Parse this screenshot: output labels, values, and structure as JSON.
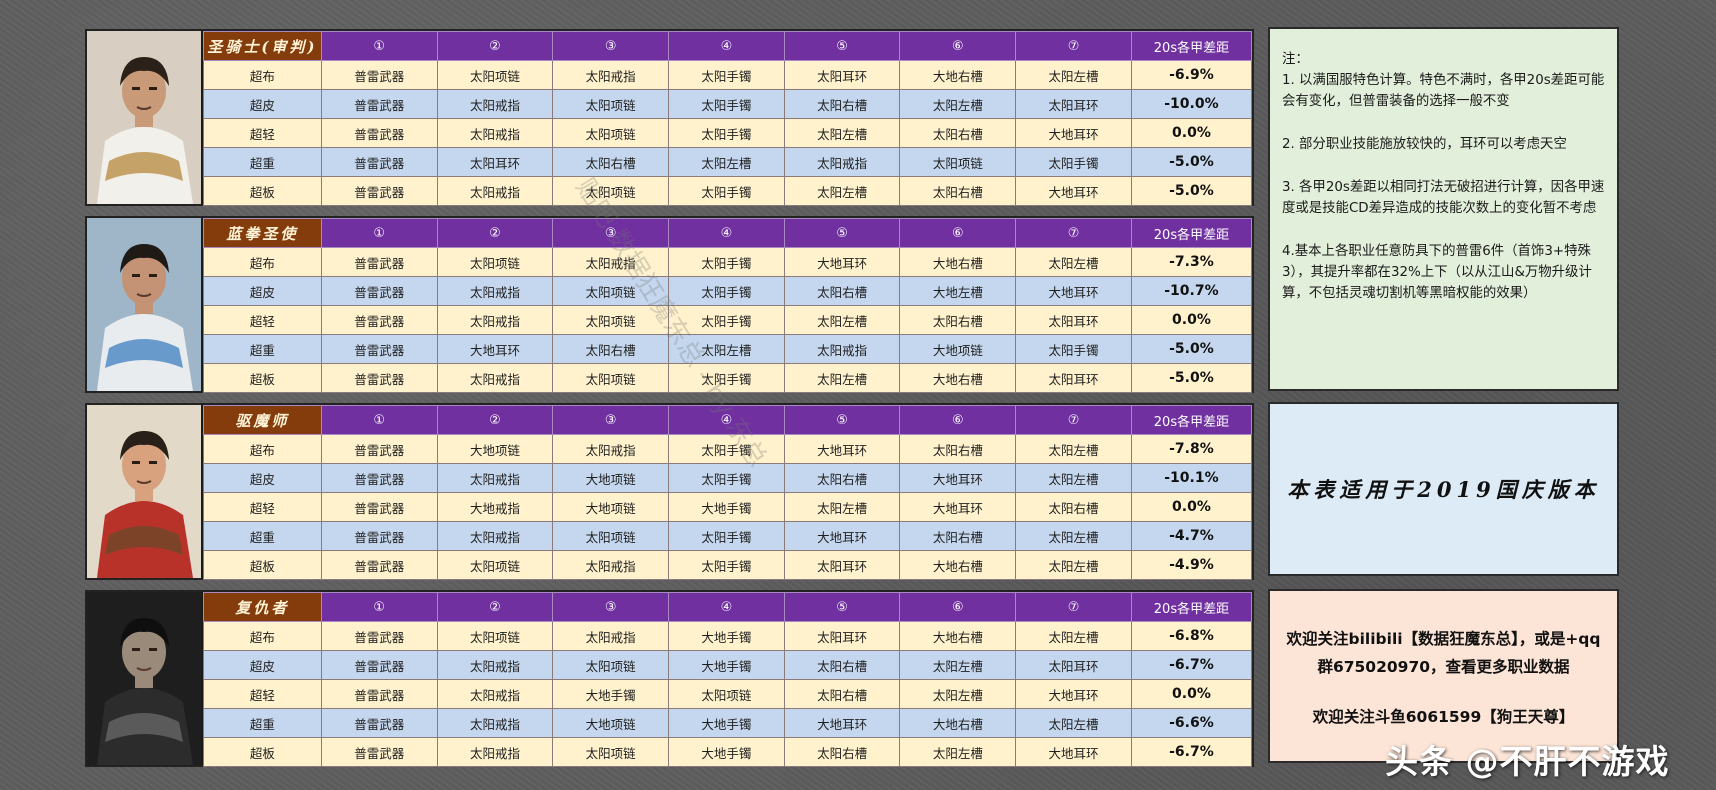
{
  "header_slots": [
    "①",
    "②",
    "③",
    "④",
    "⑤",
    "⑥",
    "⑦",
    "20s各甲差距"
  ],
  "classes": [
    {
      "name": "圣骑士(审判)",
      "palette": {
        "bg": "#d8cfc2",
        "skin": "#c89a78",
        "hair": "#2b2118",
        "cloth": "#f2f0ea",
        "accent": "#b58a3c"
      },
      "rows": [
        {
          "armor": "超布",
          "slots": [
            "普雷武器",
            "太阳项链",
            "太阳戒指",
            "太阳手镯",
            "太阳耳环",
            "大地右槽",
            "太阳左槽"
          ],
          "diff": "-6.9%"
        },
        {
          "armor": "超皮",
          "slots": [
            "普雷武器",
            "太阳戒指",
            "太阳项链",
            "太阳手镯",
            "太阳右槽",
            "太阳左槽",
            "太阳耳环"
          ],
          "diff": "-10.0%"
        },
        {
          "armor": "超轻",
          "slots": [
            "普雷武器",
            "太阳戒指",
            "太阳项链",
            "太阳手镯",
            "太阳左槽",
            "太阳右槽",
            "大地耳环"
          ],
          "diff": "0.0%"
        },
        {
          "armor": "超重",
          "slots": [
            "普雷武器",
            "太阳耳环",
            "太阳右槽",
            "太阳左槽",
            "太阳戒指",
            "太阳项链",
            "太阳手镯"
          ],
          "diff": "-5.0%"
        },
        {
          "armor": "超板",
          "slots": [
            "普雷武器",
            "太阳戒指",
            "太阳项链",
            "太阳手镯",
            "太阳左槽",
            "太阳右槽",
            "大地耳环"
          ],
          "diff": "-5.0%"
        }
      ]
    },
    {
      "name": "蓝拳圣使",
      "palette": {
        "bg": "#9fb6c9",
        "skin": "#c49274",
        "hair": "#1f1a16",
        "cloth": "#e8ecef",
        "accent": "#3d7fbf"
      },
      "rows": [
        {
          "armor": "超布",
          "slots": [
            "普雷武器",
            "太阳项链",
            "太阳戒指",
            "太阳手镯",
            "大地耳环",
            "大地右槽",
            "太阳左槽"
          ],
          "diff": "-7.3%"
        },
        {
          "armor": "超皮",
          "slots": [
            "普雷武器",
            "太阳戒指",
            "太阳项链",
            "太阳手镯",
            "太阳右槽",
            "大地左槽",
            "大地耳环"
          ],
          "diff": "-10.7%"
        },
        {
          "armor": "超轻",
          "slots": [
            "普雷武器",
            "太阳戒指",
            "太阳项链",
            "太阳手镯",
            "太阳左槽",
            "太阳右槽",
            "太阳耳环"
          ],
          "diff": "0.0%"
        },
        {
          "armor": "超重",
          "slots": [
            "普雷武器",
            "大地耳环",
            "太阳右槽",
            "太阳左槽",
            "太阳戒指",
            "大地项链",
            "太阳手镯"
          ],
          "diff": "-5.0%"
        },
        {
          "armor": "超板",
          "slots": [
            "普雷武器",
            "太阳戒指",
            "太阳项链",
            "太阳手镯",
            "太阳左槽",
            "大地右槽",
            "太阳耳环"
          ],
          "diff": "-5.0%"
        }
      ]
    },
    {
      "name": "驱魔师",
      "palette": {
        "bg": "#e3d9c8",
        "skin": "#d9a27e",
        "hair": "#2a201a",
        "cloth": "#b8322a",
        "accent": "#6a4a2a"
      },
      "rows": [
        {
          "armor": "超布",
          "slots": [
            "普雷武器",
            "大地项链",
            "太阳戒指",
            "太阳手镯",
            "大地耳环",
            "太阳右槽",
            "太阳左槽"
          ],
          "diff": "-7.8%"
        },
        {
          "armor": "超皮",
          "slots": [
            "普雷武器",
            "太阳戒指",
            "大地项链",
            "太阳手镯",
            "太阳右槽",
            "大地耳环",
            "太阳左槽"
          ],
          "diff": "-10.1%"
        },
        {
          "armor": "超轻",
          "slots": [
            "普雷武器",
            "大地戒指",
            "大地项链",
            "大地手镯",
            "太阳左槽",
            "大地耳环",
            "太阳右槽"
          ],
          "diff": "0.0%"
        },
        {
          "armor": "超重",
          "slots": [
            "普雷武器",
            "太阳戒指",
            "太阳项链",
            "太阳手镯",
            "大地耳环",
            "太阳右槽",
            "太阳左槽"
          ],
          "diff": "-4.7%"
        },
        {
          "armor": "超板",
          "slots": [
            "普雷武器",
            "太阳项链",
            "太阳戒指",
            "太阳手镯",
            "太阳耳环",
            "大地右槽",
            "太阳左槽"
          ],
          "diff": "-4.9%"
        }
      ]
    },
    {
      "name": "复仇者",
      "palette": {
        "bg": "#1e1e1e",
        "skin": "#9a8a7a",
        "hair": "#0f0f0f",
        "cloth": "#2c2c2c",
        "accent": "#6a6a6a"
      },
      "rows": [
        {
          "armor": "超布",
          "slots": [
            "普雷武器",
            "太阳项链",
            "太阳戒指",
            "大地手镯",
            "太阳耳环",
            "大地右槽",
            "太阳左槽"
          ],
          "diff": "-6.8%"
        },
        {
          "armor": "超皮",
          "slots": [
            "普雷武器",
            "太阳戒指",
            "太阳项链",
            "大地手镯",
            "太阳右槽",
            "太阳左槽",
            "太阳耳环"
          ],
          "diff": "-6.7%"
        },
        {
          "armor": "超轻",
          "slots": [
            "普雷武器",
            "太阳戒指",
            "大地手镯",
            "太阳项链",
            "太阳右槽",
            "太阳左槽",
            "大地耳环"
          ],
          "diff": "0.0%"
        },
        {
          "armor": "超重",
          "slots": [
            "普雷武器",
            "太阳戒指",
            "大地项链",
            "大地手镯",
            "大地耳环",
            "大地右槽",
            "太阳左槽"
          ],
          "diff": "-6.6%"
        },
        {
          "armor": "超板",
          "slots": [
            "普雷武器",
            "太阳戒指",
            "太阳项链",
            "大地手镯",
            "太阳右槽",
            "太阳左槽",
            "大地耳环"
          ],
          "diff": "-6.7%"
        }
      ]
    }
  ],
  "notes": {
    "title": "注：",
    "items": [
      "1. 以满国服特色计算。特色不满时，各甲20s差距可能会有变化，但普雷装备的选择一般不变",
      "2. 部分职业技能施放较快的，耳环可以考虑天空",
      "3. 各甲20s差距以相同打法无破招进行计算，因各甲速度或是技能CD差异造成的技能次数上的变化暂不考虑",
      "4.基本上各职业任意防具下的普雷6件（首饰3+特殊3），其提升率都在32%上下（以从江山&万物升级计算，不包括灵魂切割机等黑暗权能的效果）"
    ]
  },
  "version_note": "本表适用于2019国庆版本",
  "follow": {
    "line1": "欢迎关注bilibili【数据狂魔东总】，或是+qq群675020970，查看更多职业数据",
    "line2": "欢迎关注斗鱼6061599【狗王天尊】"
  },
  "watermark": "头条 @不肝不游戏",
  "watermark_diag": "贴吧 数据狂魔东总 - by 东总"
}
